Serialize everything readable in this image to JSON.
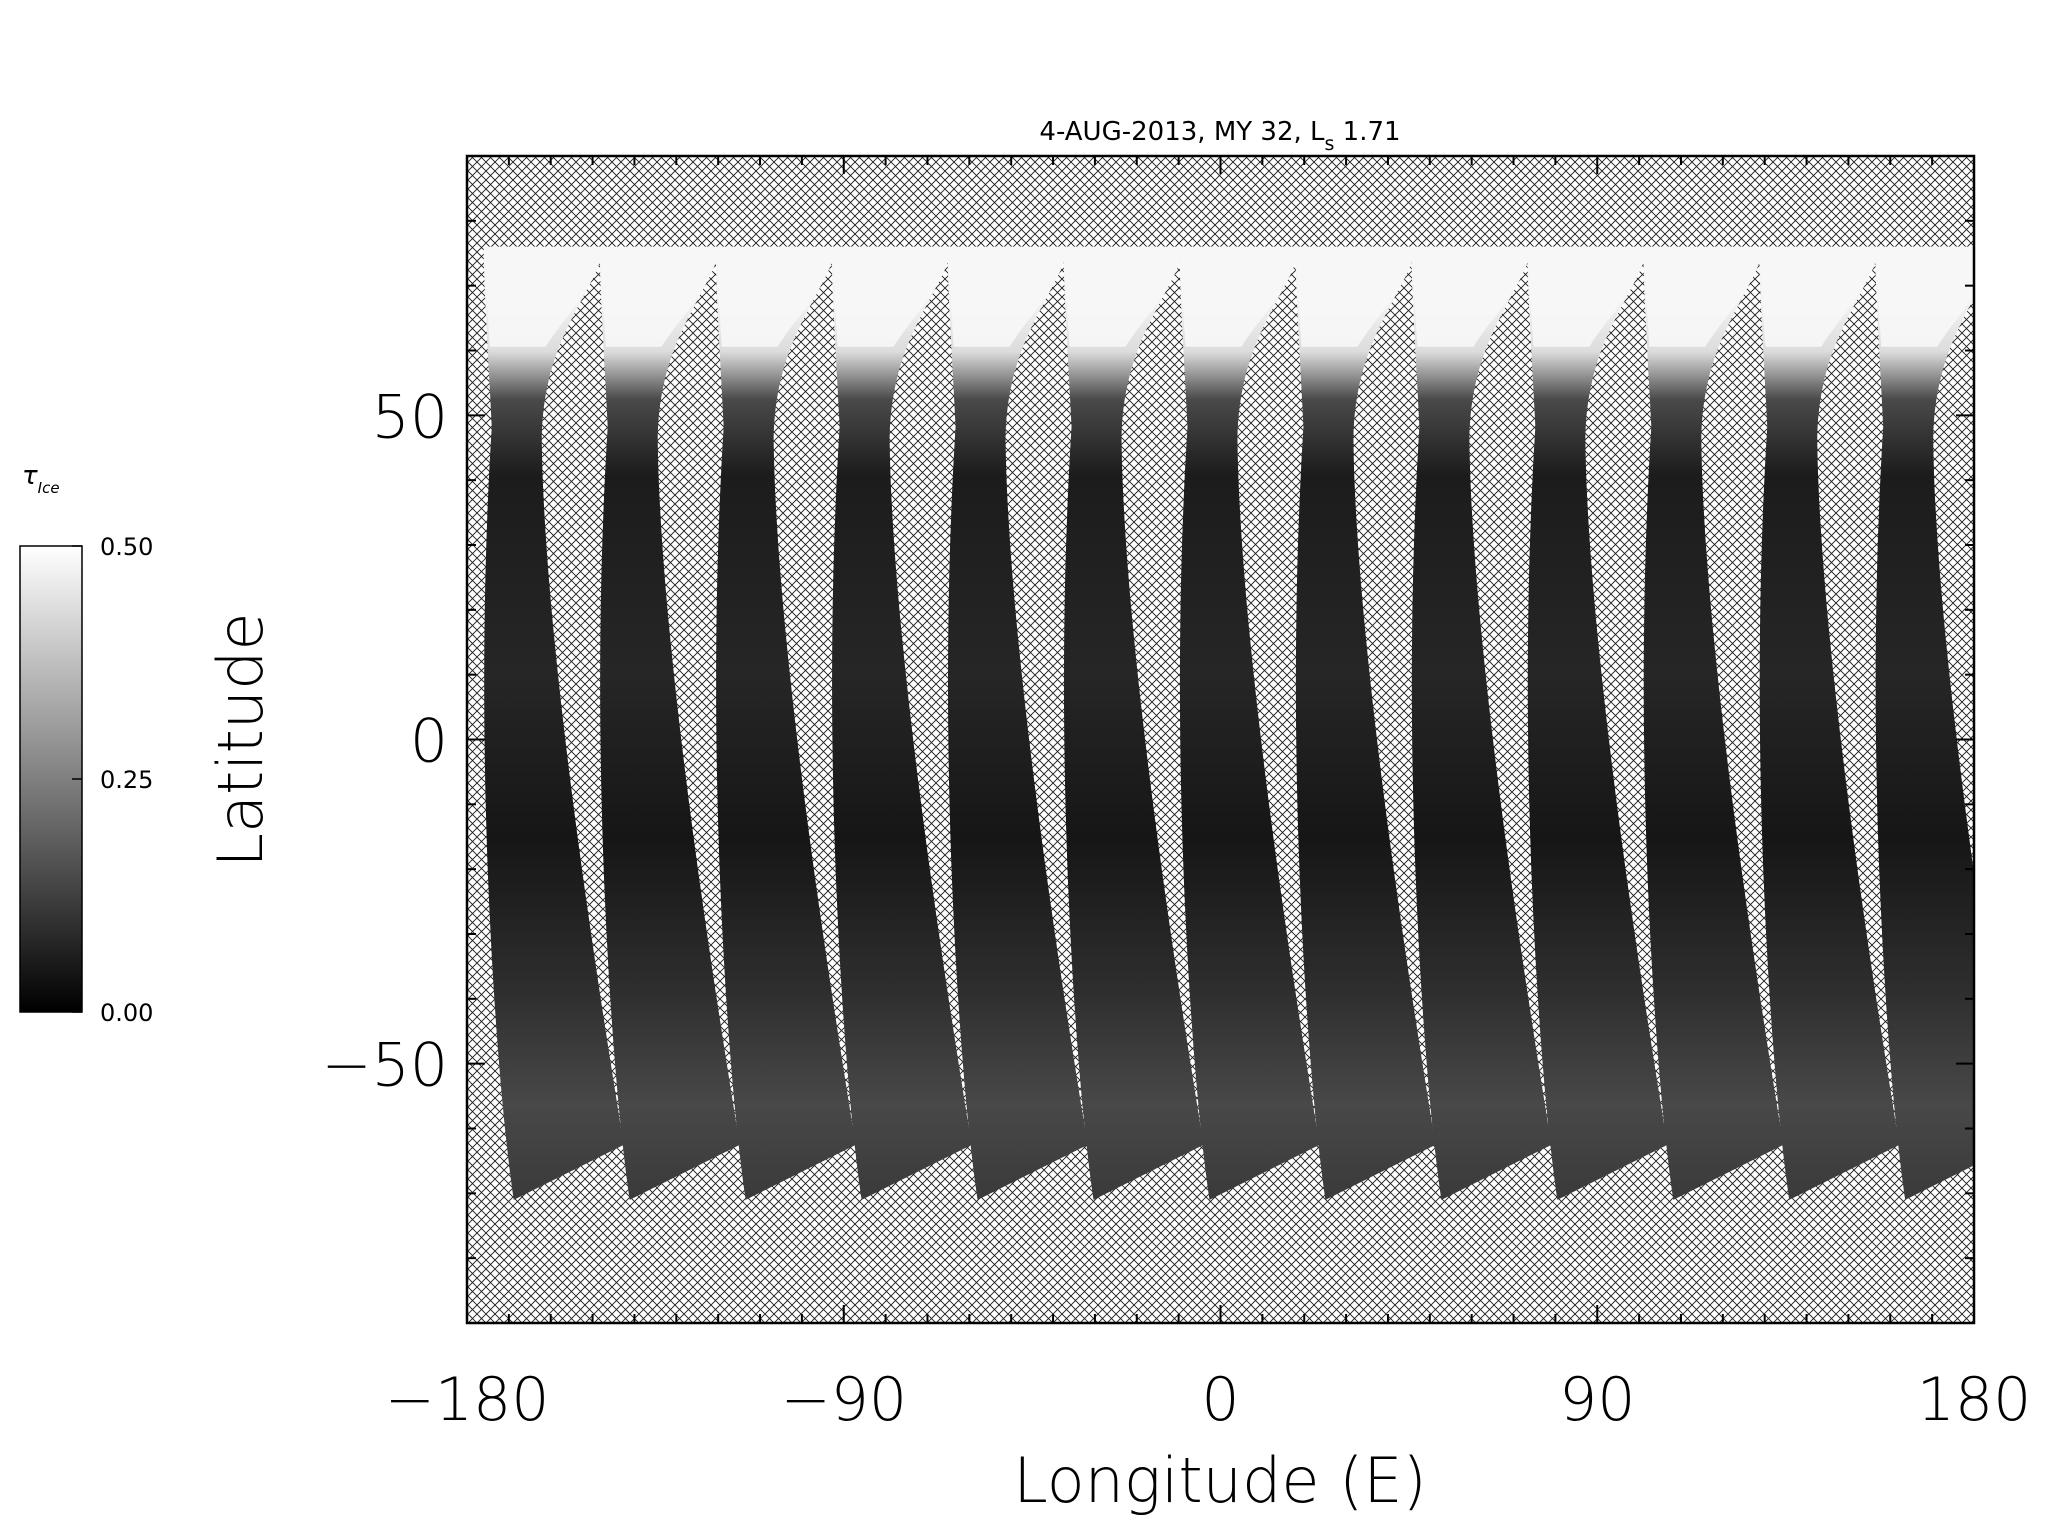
{
  "chart_data": {
    "type": "heatmap",
    "title": "4-AUG-2013, MY 32,  L",
    "title_subscript": "s",
    "title_suffix": " 1.71",
    "xlabel": "Longitude (E)",
    "ylabel": "Latitude",
    "xlim": [
      -180,
      180
    ],
    "ylim": [
      -90,
      90
    ],
    "x_ticks": [
      -180,
      -90,
      0,
      90,
      180
    ],
    "x_tick_labels": [
      "−180",
      "−90",
      "0",
      "90",
      "180"
    ],
    "y_ticks": [
      -50,
      0,
      50
    ],
    "y_tick_labels": [
      "−50",
      "0",
      "50"
    ],
    "colorbar": {
      "label": "τ",
      "label_subscript": "Ice",
      "range": [
        0.0,
        0.5
      ],
      "ticks": [
        0.0,
        0.25,
        0.5
      ],
      "tick_labels": [
        "0.00",
        "0.25",
        "0.50"
      ],
      "colormap": "grayscale"
    },
    "swaths": {
      "count": 13,
      "spacing_deg": 27.7,
      "first_north_lon": -176,
      "north_lat": 76,
      "south_lat": -71,
      "no_data_pattern": "crosshatch"
    }
  }
}
